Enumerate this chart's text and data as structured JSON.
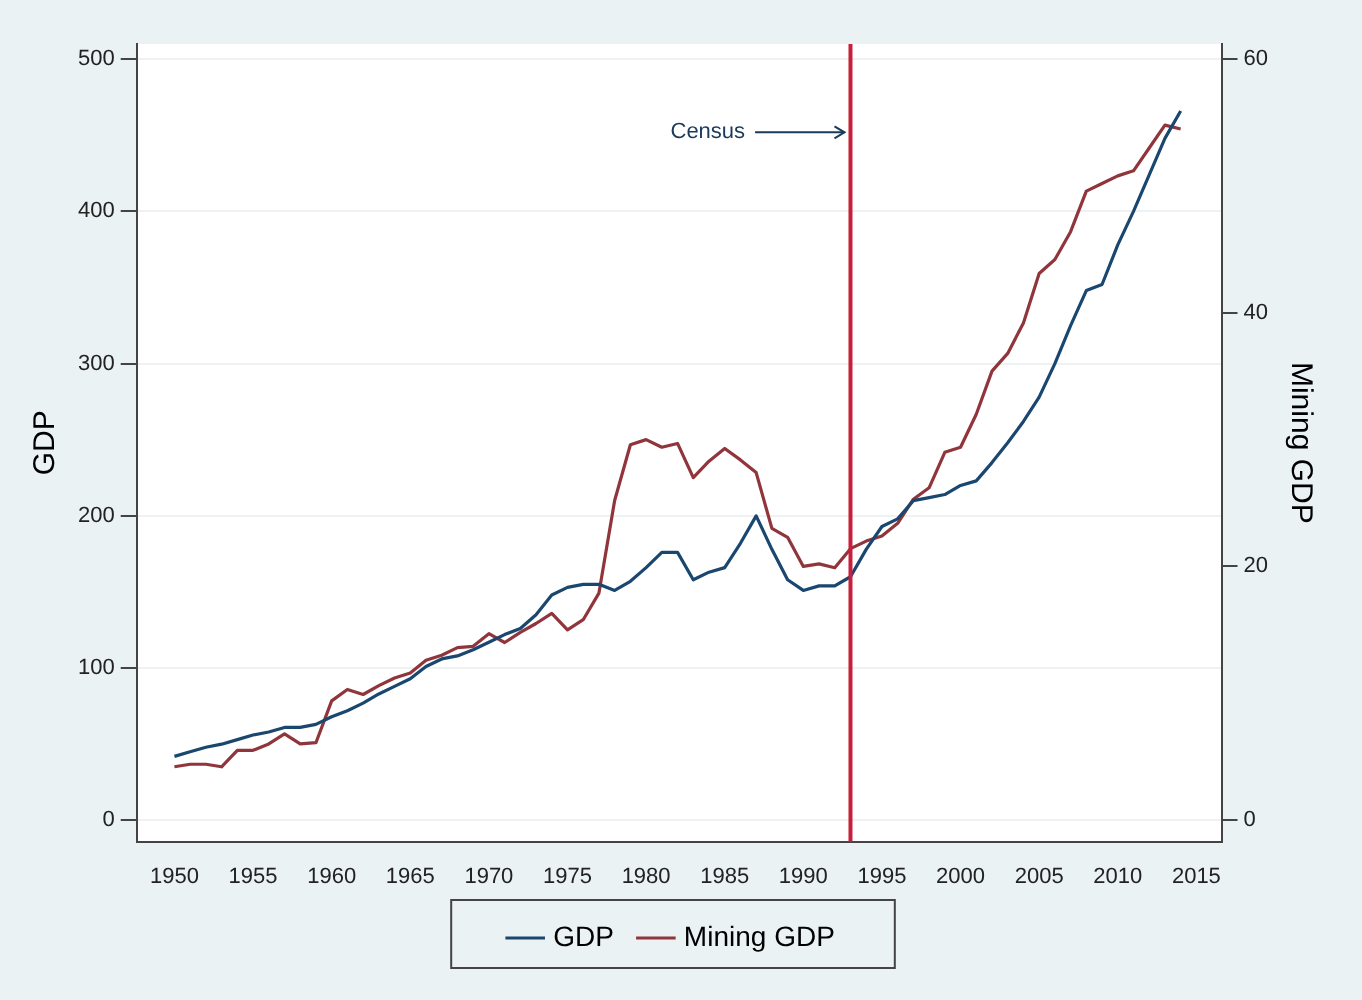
{
  "chart_data": {
    "type": "line",
    "ylabel": "GDP",
    "y2label": "Mining GDP",
    "x": [
      1950,
      1951,
      1952,
      1953,
      1954,
      1955,
      1956,
      1957,
      1958,
      1959,
      1960,
      1961,
      1962,
      1963,
      1964,
      1965,
      1966,
      1967,
      1968,
      1969,
      1970,
      1971,
      1972,
      1973,
      1974,
      1975,
      1976,
      1977,
      1978,
      1979,
      1980,
      1981,
      1982,
      1983,
      1984,
      1985,
      1986,
      1987,
      1988,
      1989,
      1990,
      1991,
      1992,
      1993,
      1994,
      1995,
      1996,
      1997,
      1998,
      1999,
      2000,
      2001,
      2002,
      2003,
      2004,
      2005,
      2006,
      2007,
      2008,
      2009,
      2010,
      2011,
      2012,
      2013,
      2014
    ],
    "series": [
      {
        "name": "GDP",
        "color": "#1a476f",
        "values": [
          42,
          45,
          48,
          50,
          53,
          56,
          58,
          61,
          61,
          63,
          68,
          72,
          77,
          83,
          88,
          93,
          101,
          106,
          108,
          112,
          117,
          122,
          126,
          135,
          148,
          153,
          155,
          155,
          151,
          157,
          166,
          176,
          176,
          158,
          163,
          166,
          182,
          200,
          178,
          158,
          151,
          154,
          154,
          160,
          178,
          193,
          198,
          210,
          212,
          214,
          220,
          223,
          235,
          248,
          262,
          278,
          300,
          325,
          348,
          352,
          378,
          400,
          424,
          448,
          466
        ]
      },
      {
        "name": "Mining GDP",
        "color": "#90353b",
        "axis": "y2",
        "values": [
          4.2,
          4.4,
          4.4,
          4.2,
          5.5,
          5.5,
          6.0,
          6.8,
          6.0,
          6.1,
          9.4,
          10.3,
          9.9,
          10.6,
          11.2,
          11.6,
          12.6,
          13.0,
          13.6,
          13.7,
          14.7,
          14.0,
          14.8,
          15.5,
          16.3,
          15.0,
          15.8,
          17.9,
          25.2,
          29.6,
          30.0,
          29.4,
          29.7,
          27.0,
          28.3,
          29.3,
          28.4,
          27.4,
          23.0,
          22.3,
          20.0,
          20.2,
          19.9,
          21.4,
          22.0,
          22.4,
          23.4,
          25.3,
          26.2,
          29.0,
          29.4,
          32.0,
          35.4,
          36.8,
          39.2,
          43.1,
          44.2,
          46.4,
          49.6,
          50.2,
          50.8,
          51.2,
          53.0,
          54.8,
          54.5
        ]
      }
    ],
    "xlim": [
      1947.6,
      2016.6
    ],
    "xticks": [
      1950,
      1955,
      1960,
      1965,
      1970,
      1975,
      1980,
      1985,
      1990,
      1995,
      2000,
      2005,
      2010,
      2015
    ],
    "ylim": [
      -14,
      510
    ],
    "yticks": [
      0,
      100,
      200,
      300,
      400,
      500
    ],
    "y2lim": [
      -1.7,
      61.2
    ],
    "y2ticks": [
      0,
      20,
      40,
      60
    ],
    "ref_lines": [
      {
        "axis": "x",
        "value": 1993,
        "color": "#c8203c"
      }
    ],
    "annotations": [
      {
        "text": "Census",
        "x": 1993,
        "y": 452
      }
    ],
    "grid": "y",
    "legend": "bottom",
    "marker": "none",
    "line_style": "solid"
  }
}
